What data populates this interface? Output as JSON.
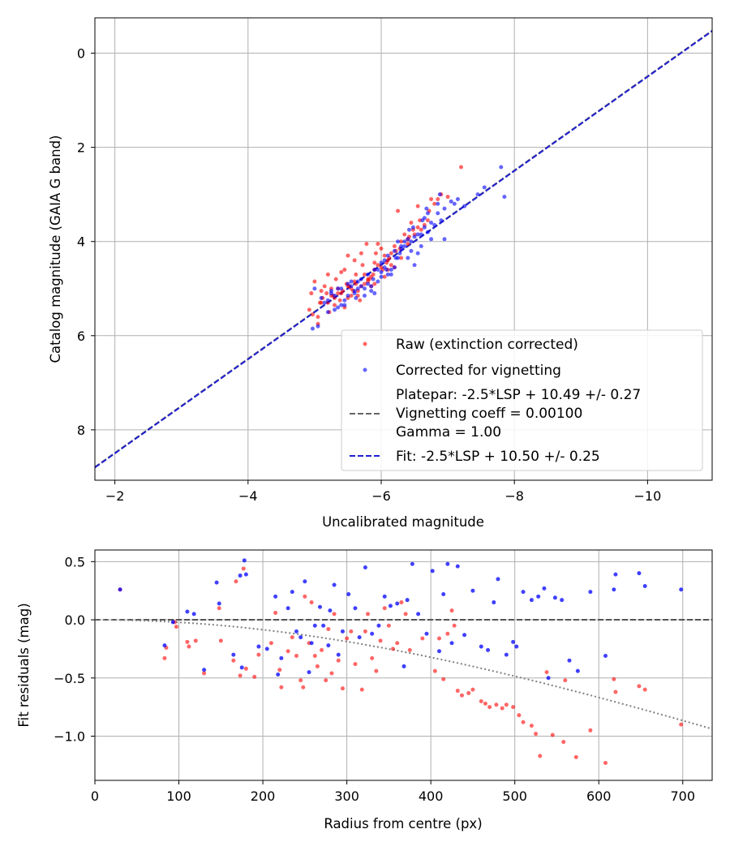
{
  "chart_data": [
    {
      "type": "scatter",
      "xlabel": "Uncalibrated magnitude",
      "ylabel": "Catalog magnitude (GAIA G band)",
      "xlim": [
        -1.7,
        -10.97
      ],
      "ylim": [
        9.07,
        -0.75
      ],
      "x_inverted": true,
      "y_inverted": true,
      "grid": true,
      "xticks": [
        -2,
        -4,
        -6,
        -8,
        -10
      ],
      "yticks": [
        0,
        2,
        4,
        6,
        8
      ],
      "legend_position": "lower-right",
      "colors": {
        "raw": "#ff0000",
        "corrected": "#0000ff",
        "platepar": "#666666",
        "fit": "#2020d0"
      },
      "series": [
        {
          "name": "Raw (extinction corrected)",
          "x": [
            -5.05,
            -4.97,
            -5.2,
            -5.4,
            -5.55,
            -5.62,
            -5.7,
            -5.3,
            -5.45,
            -5.8,
            -5.9,
            -5.1,
            -5.25,
            -5.6,
            -5.75,
            -5.95,
            -6.05,
            -6.2,
            -6.3,
            -6.1,
            -5.35,
            -5.5,
            -5.65,
            -5.85,
            -6.0,
            -6.15,
            -6.4,
            -6.5,
            -6.6,
            -6.7,
            -6.8,
            -5.0,
            -5.15,
            -4.95,
            -5.4,
            -5.7,
            -5.9,
            -6.25,
            -6.45,
            -6.55,
            -6.75,
            -6.9,
            -7.0,
            -7.2,
            -5.05,
            -5.3,
            -5.55,
            -5.75,
            -6.1,
            -6.35,
            -5.2,
            -5.5,
            -5.8,
            -6.0,
            -5.45,
            -5.6,
            -5.95,
            -6.2,
            -5.1,
            -5.35,
            -5.65,
            -5.9,
            -6.05,
            -6.3,
            -6.55,
            -5.25,
            -5.5,
            -5.85,
            -6.15,
            -6.4,
            -6.65,
            -4.92,
            -5.12,
            -5.42,
            -5.72,
            -5.52,
            -5.82,
            -6.12,
            -6.02,
            -5.32,
            -5.62,
            -5.92,
            -6.22,
            -6.42,
            -5.22,
            -5.38,
            -5.68,
            -5.78,
            -6.08,
            -5.18,
            -5.48,
            -5.58,
            -5.88,
            -6.28,
            -6.48,
            -6.58,
            -6.72,
            -6.85,
            -5.08,
            -5.28
          ],
          "y": [
            5.75,
            5.55,
            5.3,
            5.1,
            5.0,
            4.9,
            4.95,
            5.2,
            5.4,
            4.8,
            4.6,
            5.05,
            5.15,
            4.85,
            4.7,
            4.5,
            4.3,
            4.1,
            4.0,
            4.4,
            5.0,
            4.95,
            5.05,
            4.75,
            4.55,
            4.25,
            3.95,
            3.85,
            3.75,
            3.55,
            3.2,
            4.85,
            4.95,
            5.1,
            4.65,
            4.25,
            4.45,
            3.35,
            3.6,
            3.7,
            3.1,
            3.0,
            3.05,
            2.42,
            5.6,
            5.35,
            5.15,
            4.9,
            4.6,
            3.85,
            4.7,
            4.3,
            4.85,
            4.15,
            4.6,
            4.4,
            4.05,
            4.55,
            5.3,
            5.1,
            5.15,
            4.9,
            4.75,
            4.35,
            3.25,
            5.0,
            5.2,
            4.95,
            4.5,
            4.05,
            3.65,
            5.45,
            5.2,
            5.05,
            4.5,
            4.95,
            4.8,
            4.35,
            4.6,
            4.8,
            4.7,
            4.25,
            4.2,
            3.9,
            5.5,
            5.25,
            5.25,
            4.05,
            4.45,
            5.1,
            4.9,
            5.05,
            4.7,
            4.15,
            3.75,
            3.55,
            3.35,
            3.1,
            5.3,
            5.15
          ]
        },
        {
          "name": "Corrected for vignetting",
          "x": [
            -4.97,
            -5.05,
            -5.2,
            -5.35,
            -5.45,
            -5.6,
            -5.75,
            -5.85,
            -5.95,
            -6.05,
            -6.15,
            -6.25,
            -6.35,
            -6.45,
            -6.55,
            -6.65,
            -6.75,
            -6.85,
            -6.95,
            -7.05,
            -7.15,
            -7.25,
            -7.45,
            -7.55,
            -7.8,
            -7.85,
            -5.1,
            -5.25,
            -5.4,
            -5.55,
            -5.7,
            -5.8,
            -5.9,
            -6.0,
            -6.1,
            -6.2,
            -6.3,
            -6.4,
            -6.5,
            -6.6,
            -6.7,
            -6.8,
            -6.9,
            -5.15,
            -5.3,
            -5.5,
            -5.65,
            -5.85,
            -6.05,
            -6.25,
            -6.45,
            -6.65,
            -6.85,
            -5.4,
            -5.6,
            -5.8,
            -6.0,
            -6.2,
            -6.4,
            -6.6,
            -5.0,
            -5.2,
            -5.45,
            -5.65,
            -5.95,
            -6.15,
            -6.35,
            -6.55,
            -6.75,
            -6.95,
            -5.3,
            -5.5,
            -5.7,
            -5.9,
            -6.1,
            -6.3,
            -6.5,
            -6.7,
            -5.25,
            -5.55,
            -5.75,
            -6.0,
            -6.22,
            -6.42,
            -6.62,
            -5.35,
            -5.62,
            -5.88,
            -6.08,
            -6.28,
            -6.48,
            -6.68,
            -6.88,
            -7.1
          ],
          "y": [
            5.85,
            5.8,
            5.5,
            5.4,
            5.25,
            5.1,
            5.0,
            5.05,
            4.85,
            4.55,
            4.6,
            4.35,
            4.1,
            4.0,
            3.85,
            3.7,
            3.6,
            3.4,
            3.3,
            3.15,
            3.1,
            3.25,
            3.0,
            2.85,
            2.42,
            3.05,
            5.2,
            5.1,
            5.0,
            4.95,
            4.8,
            4.7,
            4.6,
            4.45,
            4.3,
            4.2,
            4.15,
            3.95,
            3.9,
            3.85,
            3.8,
            3.65,
            3.55,
            5.3,
            5.15,
            4.9,
            4.85,
            4.95,
            4.4,
            4.0,
            4.2,
            3.5,
            3.2,
            5.35,
            5.05,
            4.9,
            4.75,
            4.55,
            4.35,
            4.1,
            5.0,
            5.25,
            5.35,
            5.0,
            4.6,
            4.7,
            4.0,
            4.25,
            3.95,
            3.95,
            5.45,
            5.15,
            4.95,
            5.1,
            4.7,
            4.1,
            4.5,
            3.4,
            5.05,
            4.85,
            5.15,
            4.65,
            4.35,
            3.75,
            3.55,
            5.0,
            5.2,
            4.8,
            4.6,
            4.25,
            3.7,
            3.3,
            3.0,
            3.2
          ]
        },
        {
          "name": "Platepar: -2.5*LSP + 10.49 +/- 0.27\nVignetting coeff = 0.00100\nGamma = 1.00",
          "slope": 1,
          "intercept": 10.49,
          "style": "dashed"
        },
        {
          "name": "Fit: -2.5*LSP + 10.50 +/- 0.25",
          "slope": 1,
          "intercept": 10.5,
          "style": "dashed"
        }
      ],
      "legend": {
        "raw": "Raw (extinction corrected)",
        "corrected": "Corrected for vignetting",
        "platepar_line1": "Platepar: -2.5*LSP + 10.49 +/- 0.27",
        "platepar_line2": "Vignetting coeff = 0.00100",
        "platepar_line3": "Gamma = 1.00",
        "fit": "Fit: -2.5*LSP + 10.50 +/- 0.25"
      }
    },
    {
      "type": "scatter",
      "xlabel": "Radius from centre (px)",
      "ylabel": "Fit residuals (mag)",
      "xlim": [
        0,
        735
      ],
      "ylim": [
        -1.38,
        0.6
      ],
      "grid": true,
      "xticks": [
        0,
        100,
        200,
        300,
        400,
        500,
        600,
        700
      ],
      "yticks": [
        0.5,
        0.0,
        -0.5,
        -1.0
      ],
      "ytick_labels": [
        "0.5",
        "0.0",
        "−0.5",
        "−1.0"
      ],
      "colors": {
        "raw": "#ff0000",
        "corrected": "#0000ff",
        "zero_line": "#555555",
        "model": "#808080"
      },
      "vignetting_coeff": 0.001,
      "series": [
        {
          "name": "Raw (extinction corrected)",
          "x": [
            30,
            83,
            85,
            95,
            97,
            110,
            112,
            120,
            130,
            148,
            150,
            165,
            168,
            173,
            177,
            180,
            190,
            195,
            210,
            215,
            220,
            222,
            230,
            235,
            240,
            245,
            248,
            250,
            255,
            258,
            262,
            265,
            270,
            275,
            278,
            282,
            285,
            290,
            295,
            300,
            305,
            310,
            318,
            322,
            325,
            330,
            335,
            340,
            345,
            350,
            355,
            360,
            365,
            370,
            375,
            390,
            405,
            410,
            415,
            420,
            425,
            428,
            432,
            437,
            445,
            450,
            460,
            465,
            470,
            478,
            485,
            490,
            498,
            505,
            510,
            520,
            525,
            530,
            538,
            545,
            558,
            560,
            573,
            590,
            608,
            618,
            620,
            648,
            655,
            698
          ],
          "y": [
            0.26,
            -0.33,
            -0.24,
            -0.02,
            -0.06,
            -0.19,
            -0.23,
            -0.18,
            -0.46,
            0.1,
            -0.18,
            -0.35,
            0.33,
            -0.48,
            0.44,
            -0.42,
            -0.49,
            -0.3,
            -0.2,
            0.06,
            -0.43,
            -0.58,
            -0.27,
            -0.15,
            -0.31,
            -0.52,
            -0.58,
            0.2,
            -0.2,
            0.15,
            -0.31,
            -0.4,
            -0.26,
            -0.52,
            -0.08,
            -0.46,
            0.05,
            -0.35,
            -0.59,
            -0.16,
            -0.1,
            -0.38,
            -0.6,
            -0.1,
            0.05,
            -0.33,
            -0.44,
            -0.18,
            0.1,
            -0.05,
            -0.25,
            -0.2,
            0.15,
            0.05,
            -0.26,
            -0.16,
            -0.44,
            -0.16,
            -0.51,
            -0.12,
            0.08,
            -0.05,
            -0.61,
            -0.65,
            -0.63,
            -0.6,
            -0.7,
            -0.72,
            -0.75,
            -0.73,
            -0.76,
            -0.73,
            -0.75,
            -0.82,
            -0.88,
            -0.91,
            -0.98,
            -1.17,
            -0.45,
            -0.99,
            -1.05,
            -0.52,
            -1.18,
            -0.95,
            -1.23,
            -0.51,
            -0.62,
            -0.57,
            -0.6,
            -0.9
          ]
        },
        {
          "name": "Corrected for vignetting",
          "x": [
            30,
            83,
            93,
            110,
            118,
            130,
            145,
            148,
            165,
            173,
            175,
            178,
            180,
            195,
            205,
            215,
            218,
            222,
            230,
            235,
            240,
            245,
            250,
            255,
            258,
            262,
            268,
            272,
            278,
            280,
            285,
            290,
            295,
            302,
            310,
            315,
            322,
            330,
            338,
            345,
            352,
            360,
            368,
            372,
            378,
            385,
            395,
            402,
            410,
            415,
            420,
            425,
            432,
            440,
            450,
            460,
            468,
            475,
            480,
            490,
            498,
            502,
            510,
            520,
            528,
            535,
            540,
            548,
            556,
            565,
            575,
            590,
            608,
            618,
            620,
            648,
            655,
            698
          ],
          "y": [
            0.26,
            -0.22,
            -0.02,
            0.07,
            0.05,
            -0.43,
            0.32,
            0.14,
            -0.3,
            0.38,
            -0.41,
            0.51,
            0.39,
            -0.23,
            -0.25,
            0.2,
            -0.47,
            -0.33,
            0.1,
            0.24,
            -0.1,
            -0.15,
            0.33,
            -0.45,
            -0.2,
            -0.05,
            0.11,
            -0.05,
            -0.22,
            0.08,
            0.3,
            -0.3,
            -0.1,
            0.22,
            0.1,
            -0.15,
            0.45,
            -0.12,
            -0.05,
            0.2,
            0.12,
            0.14,
            -0.4,
            0.17,
            0.48,
            0.05,
            -0.12,
            0.42,
            -0.27,
            0.22,
            0.48,
            -0.2,
            0.46,
            -0.13,
            0.25,
            -0.23,
            -0.26,
            0.15,
            0.35,
            -0.3,
            -0.19,
            -0.23,
            0.24,
            0.17,
            0.2,
            0.27,
            -0.5,
            0.19,
            0.17,
            -0.35,
            -0.44,
            0.24,
            -0.31,
            0.26,
            0.39,
            0.4,
            0.29,
            0.26
          ]
        }
      ]
    }
  ]
}
